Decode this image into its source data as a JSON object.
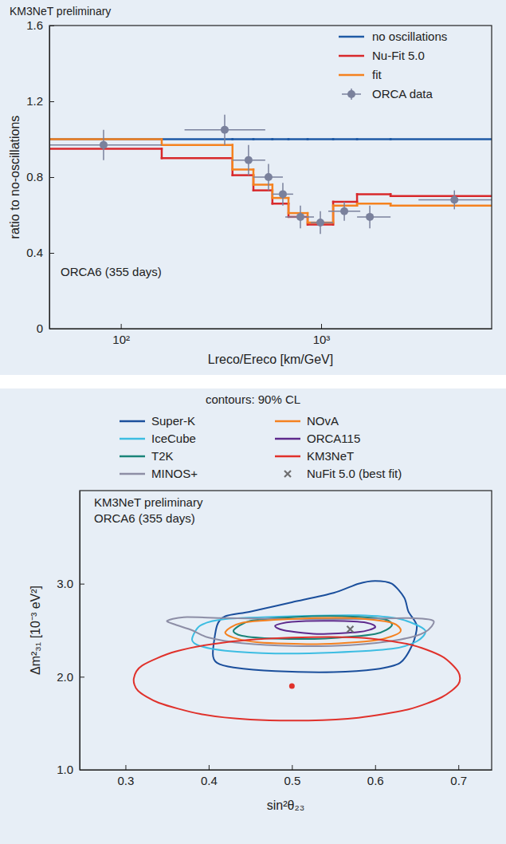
{
  "chart_data": [
    {
      "type": "step",
      "title": "KM3NeT preliminary",
      "annotations": [
        "ORCA6 (355 days)"
      ],
      "x_label": "Lreco/Ereco [km/GeV]",
      "y_label": "ratio to no-oscillations",
      "log": "x",
      "xlim": [
        44,
        7100
      ],
      "xticks": [
        {
          "value": 100,
          "label": "10²"
        },
        {
          "value": 1000,
          "label": "10³"
        }
      ],
      "ylim": [
        0,
        1.6
      ],
      "yticks": [
        0,
        0.4,
        0.8,
        1.2,
        1.6
      ],
      "legend": "upper right",
      "bins": [
        44,
        160,
        361,
        459,
        571,
        687,
        856,
        1148,
        1511,
        2221,
        7100
      ],
      "series": [
        {
          "name": "no oscillations",
          "color": "#1f5aa6",
          "type": "step",
          "values": [
            1.0,
            1.0,
            1.0,
            1.0,
            1.0,
            1.0,
            1.0,
            1.0,
            1.0,
            1.0
          ]
        },
        {
          "name": "Nu-Fit 5.0",
          "color": "#d8282b",
          "type": "step",
          "values": [
            0.95,
            0.9,
            0.81,
            0.73,
            0.66,
            0.59,
            0.55,
            0.67,
            0.71,
            0.7
          ]
        },
        {
          "name": "fit",
          "color": "#f5821f",
          "type": "step",
          "values": [
            1.0,
            0.97,
            0.84,
            0.76,
            0.69,
            0.61,
            0.56,
            0.65,
            0.66,
            0.65
          ]
        },
        {
          "name": "ORCA data",
          "color": "#7a819c",
          "type": "errorbar",
          "marker": "circle",
          "x": [
            82,
            330,
            434,
            546,
            644,
            788,
            991,
            1305,
            1750,
            4627
          ],
          "values": [
            0.97,
            1.05,
            0.89,
            0.8,
            0.71,
            0.59,
            0.56,
            0.62,
            0.59,
            0.68
          ],
          "error": [
            0.08,
            0.08,
            0.08,
            0.07,
            0.06,
            0.06,
            0.06,
            0.05,
            0.06,
            0.05
          ],
          "x_low": [
            44,
            208,
            361,
            459,
            571,
            662,
            888,
            1086,
            1511,
            3062
          ],
          "x_high": [
            160,
            526,
            526,
            644,
            725,
            921,
            1148,
            1568,
            2221,
            7100
          ]
        }
      ]
    },
    {
      "type": "contour",
      "title": "contours: 90% CL",
      "annotations": [
        "KM3NeT preliminary",
        "ORCA6 (355 days)"
      ],
      "x_label": "sin²θ₂₃",
      "y_label": "Δm²₃₁ [10⁻³ eV²]",
      "xlim": [
        0.245,
        0.74
      ],
      "xticks": [
        0.3,
        0.4,
        0.5,
        0.6,
        0.7
      ],
      "ylim": [
        1.0,
        4.0
      ],
      "yticks": [
        {
          "value": 1.0,
          "label": "1.0"
        },
        {
          "value": 2.0,
          "label": "2.0"
        },
        {
          "value": 3.0,
          "label": "3.0"
        }
      ],
      "legend": "top",
      "series": [
        {
          "name": "Super-K",
          "color": "#1b4f9c",
          "type": "contour",
          "x": [
            0.405,
            0.41,
            0.42,
            0.45,
            0.5,
            0.55,
            0.58,
            0.6,
            0.62,
            0.635,
            0.64,
            0.65,
            0.645,
            0.63,
            0.6,
            0.55,
            0.48,
            0.43,
            0.41
          ],
          "values": [
            2.25,
            2.55,
            2.65,
            2.7,
            2.8,
            2.9,
            3.0,
            3.03,
            3.0,
            2.85,
            2.7,
            2.55,
            2.35,
            2.15,
            2.08,
            2.05,
            2.06,
            2.1,
            2.15
          ]
        },
        {
          "name": "IceCube",
          "color": "#3dbde2",
          "type": "contour",
          "x": [
            0.38,
            0.39,
            0.42,
            0.5,
            0.58,
            0.63,
            0.66,
            0.65,
            0.62,
            0.55,
            0.48,
            0.42,
            0.39
          ],
          "values": [
            2.4,
            2.55,
            2.62,
            2.65,
            2.66,
            2.62,
            2.5,
            2.38,
            2.3,
            2.26,
            2.25,
            2.28,
            2.33
          ]
        },
        {
          "name": "T2K",
          "color": "#1a8479",
          "type": "contour",
          "x": [
            0.43,
            0.45,
            0.5,
            0.56,
            0.61,
            0.62,
            0.6,
            0.54,
            0.48,
            0.44
          ],
          "values": [
            2.5,
            2.6,
            2.64,
            2.65,
            2.62,
            2.55,
            2.46,
            2.41,
            2.41,
            2.44
          ]
        },
        {
          "name": "MINOS+",
          "color": "#8d8ea6",
          "type": "contour",
          "x": [
            0.35,
            0.37,
            0.42,
            0.5,
            0.58,
            0.64,
            0.67,
            0.66,
            0.63,
            0.57,
            0.5,
            0.44,
            0.4,
            0.38,
            0.36
          ],
          "values": [
            2.6,
            2.64,
            2.63,
            2.62,
            2.62,
            2.63,
            2.6,
            2.48,
            2.4,
            2.34,
            2.33,
            2.36,
            2.42,
            2.5,
            2.56
          ]
        },
        {
          "name": "NOvA",
          "color": "#f48120",
          "type": "contour",
          "x": [
            0.42,
            0.44,
            0.5,
            0.57,
            0.62,
            0.63,
            0.6,
            0.53,
            0.46,
            0.43
          ],
          "values": [
            2.48,
            2.58,
            2.62,
            2.63,
            2.58,
            2.48,
            2.39,
            2.35,
            2.37,
            2.42
          ]
        },
        {
          "name": "ORCA115",
          "color": "#5e2a8c",
          "type": "contour",
          "x": [
            0.48,
            0.5,
            0.55,
            0.59,
            0.6,
            0.58,
            0.53,
            0.49
          ],
          "values": [
            2.55,
            2.59,
            2.6,
            2.58,
            2.53,
            2.48,
            2.46,
            2.5
          ]
        },
        {
          "name": "KM3NeT",
          "color": "#e0312b",
          "type": "contour",
          "x": [
            0.31,
            0.32,
            0.36,
            0.42,
            0.5,
            0.58,
            0.64,
            0.68,
            0.7,
            0.7,
            0.68,
            0.64,
            0.58,
            0.52,
            0.45,
            0.39,
            0.34,
            0.315
          ],
          "values": [
            1.98,
            2.12,
            2.27,
            2.37,
            2.42,
            2.42,
            2.35,
            2.22,
            2.05,
            1.92,
            1.78,
            1.65,
            1.56,
            1.53,
            1.54,
            1.6,
            1.72,
            1.85
          ]
        },
        {
          "name": "NuFit 5.0 (best fit)",
          "color": "#6d6e70",
          "type": "scatter",
          "marker": "x",
          "x": [
            0.57
          ],
          "values": [
            2.51
          ]
        },
        {
          "color": "#e0312b",
          "type": "scatter",
          "marker": "circle",
          "x": [
            0.5
          ],
          "values": [
            1.9
          ]
        }
      ]
    }
  ]
}
